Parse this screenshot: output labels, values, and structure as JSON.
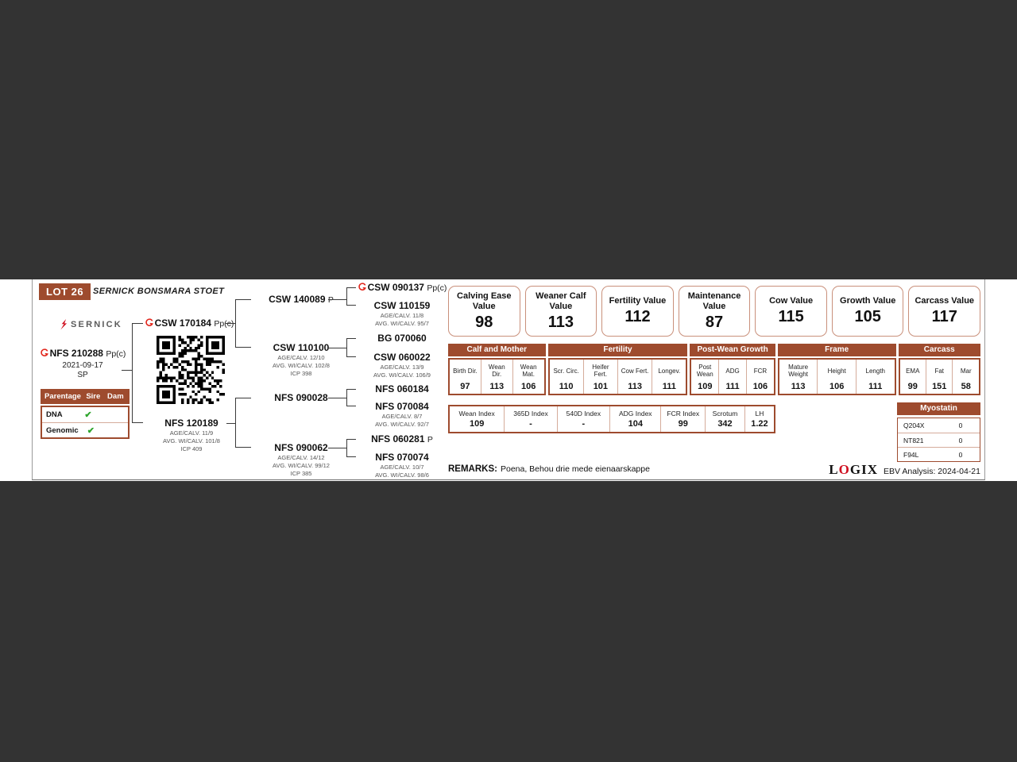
{
  "colors": {
    "accent_brown": "#9e4b2e",
    "value_box_border": "#c9907b",
    "check_green": "#2ea52c",
    "brand_red": "#e1251b",
    "background_band": "#333333"
  },
  "header": {
    "lot": "LOT 26",
    "stud": "SERNICK BONSMARA STOET",
    "brand": "SERNICK"
  },
  "subject": {
    "id": "NFS 210288",
    "suffix": "Pp(c)",
    "birth_date": "2021-09-17",
    "status": "SP"
  },
  "parentage": {
    "title": "Parentage",
    "sire_col": "Sire",
    "dam_col": "Dam",
    "rows": [
      {
        "label": "DNA",
        "sire_check": "✔",
        "dam_check": ""
      },
      {
        "label": "Genomic",
        "sire_check": "✔",
        "dam_check": ""
      }
    ]
  },
  "pedigree": {
    "sire": {
      "id": "CSW 170184",
      "suffix": "Pp(c)"
    },
    "dam": {
      "id": "NFS 120189",
      "stats": [
        "AGE/CALV. 11/9",
        "AVG. WI/CALV. 101/8",
        "ICP 409"
      ]
    },
    "ss": {
      "id": "CSW 140089",
      "suffix": "P"
    },
    "sd": {
      "id": "CSW 110100",
      "stats": [
        "AGE/CALV. 12/10",
        "AVG. WI/CALV. 102/8",
        "ICP 398"
      ]
    },
    "ds": {
      "id": "NFS 090028"
    },
    "dd": {
      "id": "NFS 090062",
      "stats": [
        "AGE/CALV. 14/12",
        "AVG. WI/CALV. 99/12",
        "ICP 385"
      ]
    },
    "sss": {
      "id": "CSW 090137",
      "suffix": "Pp(c)"
    },
    "ssd": {
      "id": "CSW 110159",
      "stats": [
        "AGE/CALV. 11/8",
        "AVG. WI/CALV. 95/7"
      ]
    },
    "sds": {
      "id": "BG 070060"
    },
    "sdd": {
      "id": "CSW 060022",
      "stats": [
        "AGE/CALV. 13/9",
        "AVG. WI/CALV. 106/9"
      ]
    },
    "dss": {
      "id": "NFS 060184"
    },
    "dsd": {
      "id": "NFS 070084",
      "stats": [
        "AGE/CALV. 8/7",
        "AVG. WI/CALV. 92/7"
      ]
    },
    "dds": {
      "id": "NFS 060281",
      "suffix": "P"
    },
    "ddd": {
      "id": "NFS 070074",
      "stats": [
        "AGE/CALV. 10/7",
        "AVG. WI/CALV. 98/6"
      ]
    }
  },
  "value_boxes": [
    {
      "label": "Calving Ease Value",
      "value": "98"
    },
    {
      "label": "Weaner Calf Value",
      "value": "113"
    },
    {
      "label": "Fertility Value",
      "value": "112"
    },
    {
      "label": "Maintenance Value",
      "value": "87"
    },
    {
      "label": "Cow Value",
      "value": "115"
    },
    {
      "label": "Growth Value",
      "value": "105"
    },
    {
      "label": "Carcass Value",
      "value": "117"
    }
  ],
  "ebv_table": {
    "groups": [
      {
        "title": "Calf and Mother",
        "cols": [
          {
            "label": "Birth Dir.",
            "value": "97"
          },
          {
            "label": "Wean Dir.",
            "value": "113"
          },
          {
            "label": "Wean Mat.",
            "value": "106"
          }
        ]
      },
      {
        "title": "Fertility",
        "cols": [
          {
            "label": "Scr. Circ.",
            "value": "110"
          },
          {
            "label": "Heifer Fert.",
            "value": "101"
          },
          {
            "label": "Cow Fert.",
            "value": "113"
          },
          {
            "label": "Longev.",
            "value": "111"
          }
        ]
      },
      {
        "title": "Post-Wean Growth",
        "cols": [
          {
            "label": "Post Wean",
            "value": "109"
          },
          {
            "label": "ADG",
            "value": "111"
          },
          {
            "label": "FCR",
            "value": "106"
          }
        ]
      },
      {
        "title": "Frame",
        "cols": [
          {
            "label": "Mature Weight",
            "value": "113"
          },
          {
            "label": "Height",
            "value": "106"
          },
          {
            "label": "Length",
            "value": "111"
          }
        ]
      },
      {
        "title": "Carcass",
        "cols": [
          {
            "label": "EMA",
            "value": "99"
          },
          {
            "label": "Fat",
            "value": "151"
          },
          {
            "label": "Mar",
            "value": "58"
          }
        ]
      }
    ]
  },
  "index_table": {
    "cells": [
      {
        "label": "Wean Index",
        "value": "109"
      },
      {
        "label": "365D Index",
        "value": "-"
      },
      {
        "label": "540D Index",
        "value": "-"
      },
      {
        "label": "ADG Index",
        "value": "104"
      },
      {
        "label": "FCR Index",
        "value": "99"
      },
      {
        "label": "Scrotum",
        "value": "342"
      },
      {
        "label": "LH",
        "value": "1.22"
      }
    ]
  },
  "myostatin": {
    "title": "Myostatin",
    "rows": [
      {
        "gene": "Q204X",
        "value": "0"
      },
      {
        "gene": "NT821",
        "value": "0"
      },
      {
        "gene": "F94L",
        "value": "0"
      }
    ]
  },
  "footer": {
    "remarks_label": "REMARKS:",
    "remarks": "Poena, Behou drie mede eienaarskappe",
    "logix_l": "L",
    "logix_o": "O",
    "logix_gix": "GIX",
    "ebv_analysis": "EBV Analysis: 2024-04-21"
  }
}
